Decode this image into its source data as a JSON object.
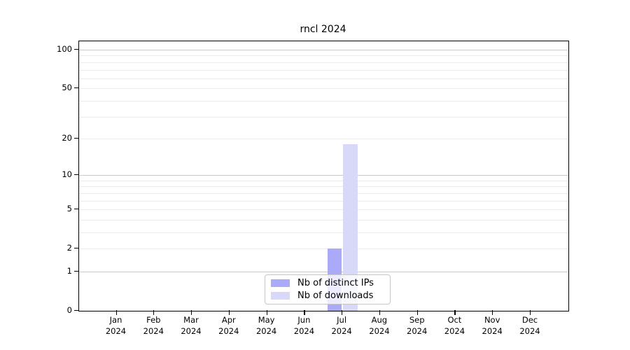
{
  "title": "rncl 2024",
  "legend": {
    "items": [
      {
        "label": "Nb of distinct IPs",
        "color": "#aaaaf8"
      },
      {
        "label": "Nb of downloads",
        "color": "#d8d8f8"
      }
    ]
  },
  "chart_data": {
    "type": "bar",
    "title": "rncl 2024",
    "categories": [
      "Jan",
      "Feb",
      "Mar",
      "Apr",
      "May",
      "Jun",
      "Jul",
      "Aug",
      "Sep",
      "Oct",
      "Nov",
      "Dec"
    ],
    "year": "2024",
    "series": [
      {
        "name": "Nb of distinct IPs",
        "color": "#aaaaf8",
        "values": [
          0,
          0,
          0,
          0,
          0,
          0,
          2,
          0,
          0,
          0,
          0,
          0
        ]
      },
      {
        "name": "Nb of downloads",
        "color": "#d8d8f8",
        "values": [
          0,
          0,
          0,
          0,
          0,
          0,
          18,
          0,
          0,
          0,
          0,
          0
        ]
      }
    ],
    "yscale": "log10(1+x)",
    "yticks": [
      0,
      1,
      2,
      5,
      10,
      20,
      50,
      100
    ],
    "major_gridlines": [
      1,
      10,
      100
    ],
    "minor_gridlines": [
      2,
      3,
      4,
      5,
      6,
      7,
      8,
      9,
      20,
      30,
      40,
      50,
      60,
      70,
      80,
      90
    ],
    "ylim": [
      0,
      116
    ],
    "xlabel": "",
    "ylabel": "",
    "grid": true,
    "legend_position": "inside-bottom-center"
  }
}
